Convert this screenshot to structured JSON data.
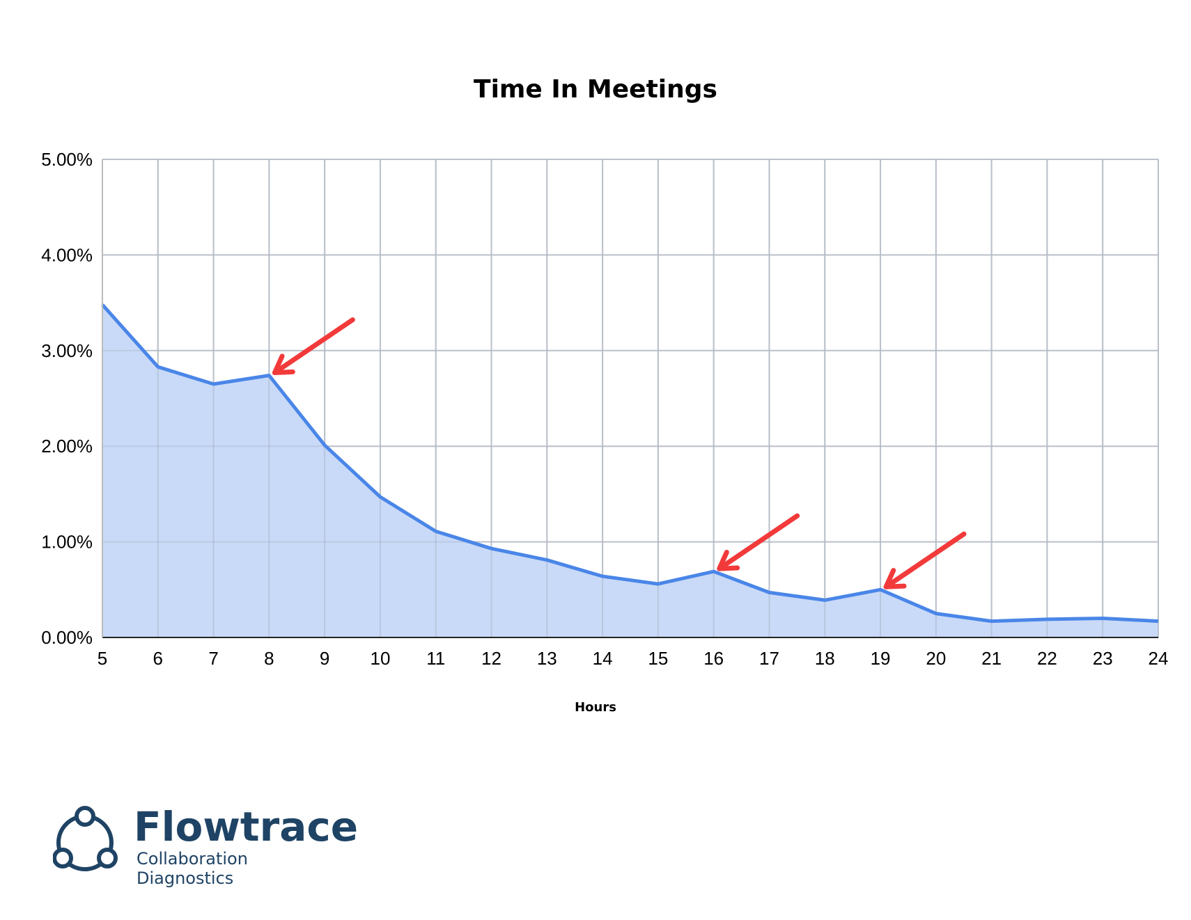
{
  "chart_data": {
    "type": "area",
    "title": "Time In Meetings",
    "xlabel": "Hours",
    "ylabel": "",
    "x": [
      5,
      6,
      7,
      8,
      9,
      10,
      11,
      12,
      13,
      14,
      15,
      16,
      17,
      18,
      19,
      20,
      21,
      22,
      23,
      24
    ],
    "series": [
      {
        "values": [
          3.48,
          2.83,
          2.65,
          2.74,
          2.01,
          1.47,
          1.11,
          0.93,
          0.81,
          0.64,
          0.56,
          0.69,
          0.47,
          0.39,
          0.5,
          0.25,
          0.17,
          0.19,
          0.2,
          0.17
        ]
      }
    ],
    "ylim": [
      0,
      5
    ],
    "xlim": [
      5,
      24
    ],
    "y_ticks": [
      "0.00%",
      "1.00%",
      "2.00%",
      "3.00%",
      "4.00%",
      "5.00%"
    ],
    "x_ticks": [
      "5",
      "6",
      "7",
      "8",
      "9",
      "10",
      "11",
      "12",
      "13",
      "14",
      "15",
      "16",
      "17",
      "18",
      "19",
      "20",
      "21",
      "22",
      "23",
      "24"
    ],
    "grid": true,
    "line_color": "#4a86e8",
    "fill_color": "#c9daf8",
    "annotations": [
      {
        "type": "arrow",
        "points_to": {
          "x": 8,
          "y": 2.74
        },
        "color": "#f23a3a"
      },
      {
        "type": "arrow",
        "points_to": {
          "x": 16,
          "y": 0.69
        },
        "color": "#f23a3a"
      },
      {
        "type": "arrow",
        "points_to": {
          "x": 19,
          "y": 0.5
        },
        "color": "#f23a3a"
      }
    ]
  },
  "logo": {
    "name": "Flowtrace",
    "tagline": "Collaboration Diagnostics",
    "color": "#1f4364"
  }
}
